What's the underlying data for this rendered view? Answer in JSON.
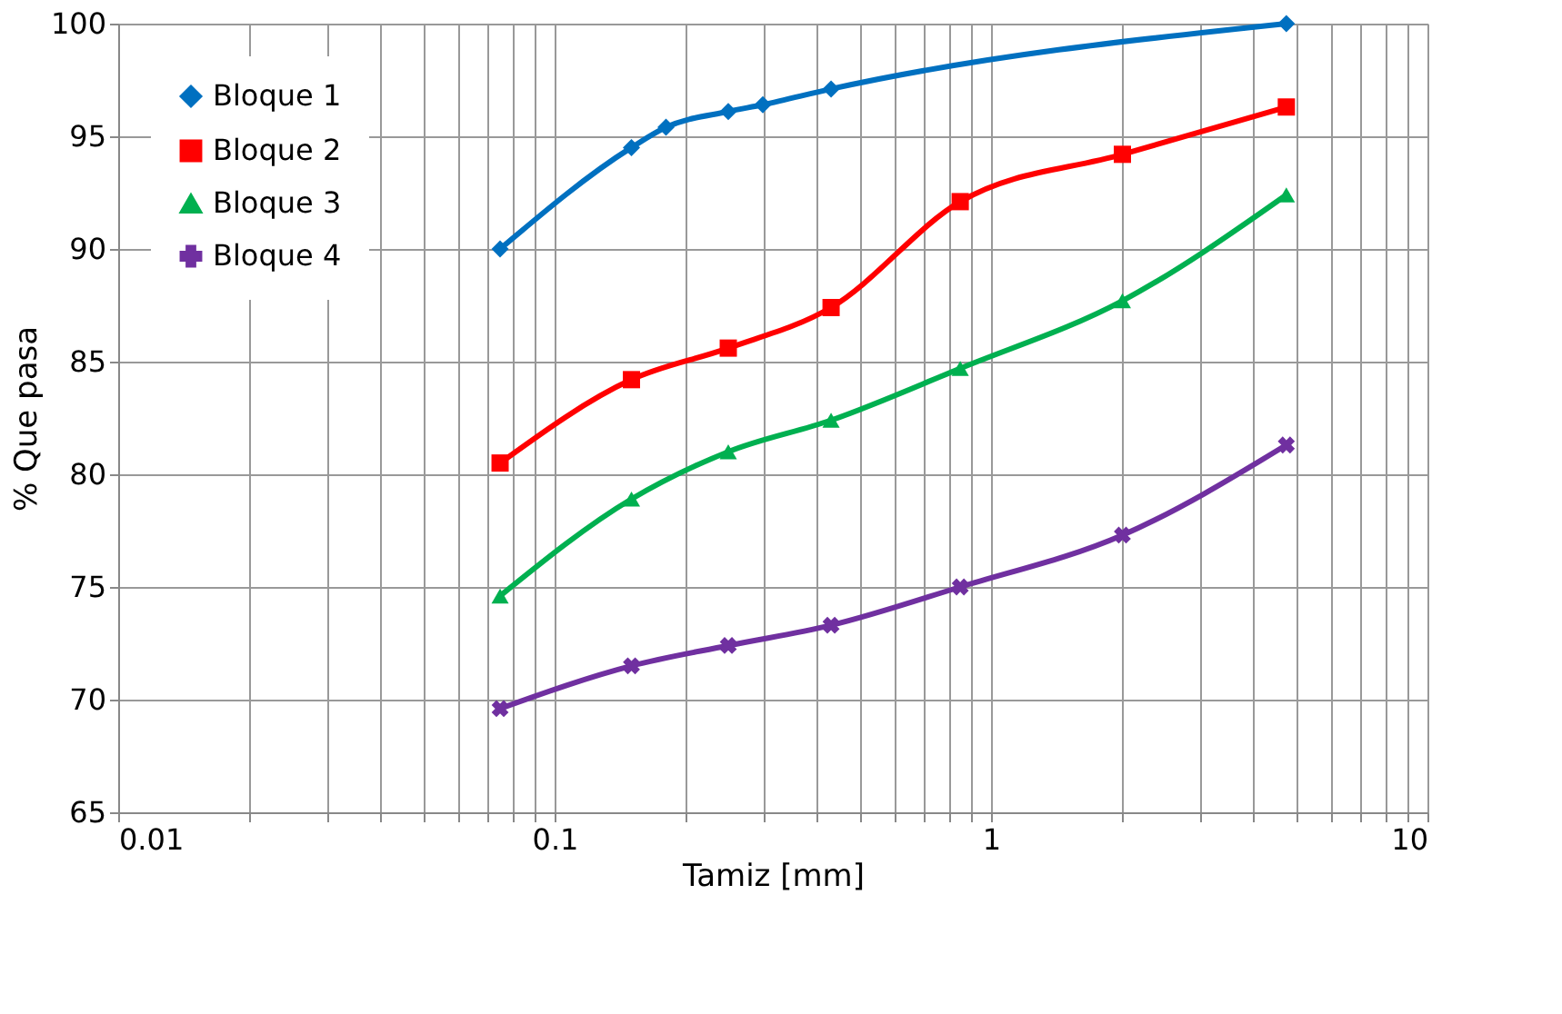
{
  "chart_data": {
    "type": "line",
    "xlabel": "Tamiz [mm]",
    "ylabel": "% Que pasa",
    "log": "x",
    "grid": true,
    "legend": "top left",
    "line_style": "solid",
    "xlim": [
      0.01,
      10
    ],
    "ylim": [
      65,
      100
    ],
    "xticks": [
      0.01,
      {
        "value": 0.02,
        "label": null
      },
      {
        "value": 0.03,
        "label": null
      },
      {
        "value": 0.04,
        "label": null
      },
      {
        "value": 0.05,
        "label": null
      },
      {
        "value": 0.06,
        "label": null
      },
      {
        "value": 0.07,
        "label": null
      },
      {
        "value": 0.08,
        "label": null
      },
      {
        "value": 0.09,
        "label": null
      },
      0.1,
      {
        "value": 0.2,
        "label": null
      },
      {
        "value": 0.3,
        "label": null
      },
      {
        "value": 0.4,
        "label": null
      },
      {
        "value": 0.5,
        "label": null
      },
      {
        "value": 0.6,
        "label": null
      },
      {
        "value": 0.7,
        "label": null
      },
      {
        "value": 0.8,
        "label": null
      },
      {
        "value": 0.9,
        "label": null
      },
      1,
      {
        "value": 2,
        "label": null
      },
      {
        "value": 3,
        "label": null
      },
      {
        "value": 4,
        "label": null
      },
      {
        "value": 5,
        "label": null
      },
      {
        "value": 6,
        "label": null
      },
      {
        "value": 7,
        "label": null
      },
      {
        "value": 8,
        "label": null
      },
      {
        "value": 9,
        "label": null
      },
      10
    ],
    "yticks": [
      65,
      70,
      75,
      80,
      85,
      90,
      95,
      100
    ],
    "series": [
      {
        "name": "Bloque 1",
        "color": "#0070c0",
        "marker": "diamond",
        "x": [
          0.075,
          0.15,
          0.18,
          0.25,
          0.3,
          0.43,
          4.75
        ],
        "values": [
          90.0,
          94.5,
          95.4,
          96.1,
          96.4,
          97.1,
          100.0
        ]
      },
      {
        "name": "Bloque 2",
        "color": "#ff0000",
        "marker": "square",
        "x": [
          0.075,
          0.15,
          0.25,
          0.43,
          0.85,
          2.0,
          4.75
        ],
        "values": [
          80.5,
          84.2,
          85.6,
          87.4,
          92.1,
          94.2,
          96.3
        ]
      },
      {
        "name": "Bloque 3",
        "color": "#00b050",
        "marker": "triangle",
        "x": [
          0.075,
          0.15,
          0.25,
          0.43,
          0.85,
          2.0,
          4.75
        ],
        "values": [
          74.6,
          78.9,
          81.0,
          82.4,
          84.7,
          87.7,
          92.4
        ]
      },
      {
        "name": "Bloque 4",
        "color": "#7030a0",
        "marker": "cross",
        "x": [
          0.075,
          0.15,
          0.25,
          0.43,
          0.85,
          2.0,
          4.75
        ],
        "values": [
          69.6,
          71.5,
          72.4,
          73.3,
          75.0,
          77.3,
          81.3
        ]
      }
    ]
  }
}
